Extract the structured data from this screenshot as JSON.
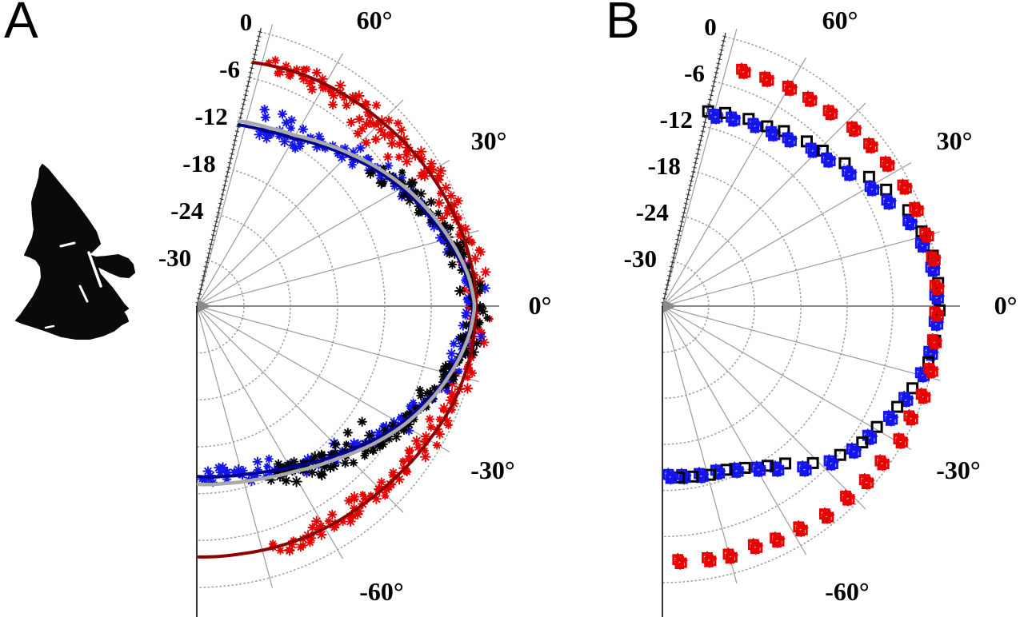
{
  "figure": {
    "panel_a_label": "A",
    "panel_b_label": "B",
    "background": "#ffffff"
  },
  "colors": {
    "red_marker": "#e60000",
    "red_line": "#8f0000",
    "blue_marker": "#1414ee",
    "blue_line": "#000090",
    "gray_line": "#a9a9a9",
    "black_marker": "#000000",
    "grid": "#9c9c9c",
    "axis": "#333333",
    "center_marker": "#8a8a8a"
  },
  "bat_silhouette": {
    "fill": "#0a0a0a",
    "outline": [
      [
        53,
        206
      ],
      [
        60,
        212
      ],
      [
        73,
        228
      ],
      [
        93,
        252
      ],
      [
        110,
        275
      ],
      [
        120,
        290
      ],
      [
        125,
        305
      ],
      [
        117,
        313
      ],
      [
        110,
        319
      ],
      [
        120,
        322
      ],
      [
        133,
        321
      ],
      [
        148,
        319
      ],
      [
        160,
        324
      ],
      [
        166,
        331
      ],
      [
        168,
        341
      ],
      [
        161,
        347
      ],
      [
        150,
        346
      ],
      [
        138,
        341
      ],
      [
        128,
        336
      ],
      [
        121,
        333
      ],
      [
        125,
        343
      ],
      [
        133,
        352
      ],
      [
        140,
        360
      ],
      [
        148,
        371
      ],
      [
        155,
        381
      ],
      [
        160,
        386
      ],
      [
        154,
        390
      ],
      [
        158,
        396
      ],
      [
        160,
        402
      ],
      [
        152,
        406
      ],
      [
        142,
        414
      ],
      [
        128,
        420
      ],
      [
        112,
        424
      ],
      [
        95,
        424
      ],
      [
        77,
        421
      ],
      [
        58,
        414
      ],
      [
        40,
        408
      ],
      [
        27,
        404
      ],
      [
        20,
        401
      ],
      [
        26,
        394
      ],
      [
        33,
        384
      ],
      [
        42,
        371
      ],
      [
        49,
        357
      ],
      [
        52,
        347
      ],
      [
        51,
        334
      ],
      [
        45,
        325
      ],
      [
        37,
        321
      ],
      [
        31,
        319
      ],
      [
        36,
        308
      ],
      [
        41,
        297
      ],
      [
        43,
        287
      ],
      [
        41,
        270
      ],
      [
        40,
        253
      ],
      [
        43,
        241
      ],
      [
        46,
        233
      ],
      [
        49,
        222
      ],
      [
        50,
        211
      ]
    ],
    "white_details": [
      {
        "from": [
          76,
          308
        ],
        "to": [
          93,
          304
        ],
        "w": 3
      },
      {
        "from": [
          111,
          316
        ],
        "to": [
          126,
          358
        ],
        "w": 3.5
      },
      {
        "from": [
          100,
          358
        ],
        "to": [
          109,
          377
        ],
        "w": 3
      },
      {
        "from": [
          57,
          410
        ],
        "to": [
          67,
          408
        ],
        "w": 2.5
      }
    ]
  },
  "chart_data": [
    {
      "id": "A",
      "type": "polar-scatter",
      "angle_unit": "degrees",
      "radial_unit": "dB",
      "angle_span": [
        77,
        -90
      ],
      "spoke_step_deg": 15,
      "radial_ticks": [
        "0",
        "-6",
        "-12",
        "-18",
        "-24",
        "-30"
      ],
      "radial_tick_values": [
        0,
        -6,
        -12,
        -18,
        -24,
        -30
      ],
      "radial_center_value": -36,
      "angle_ticks": [
        "60°",
        "30°",
        "0°",
        "-30°",
        "-60°"
      ],
      "angle_tick_values": [
        60,
        30,
        0,
        -30,
        -60
      ],
      "series": [
        {
          "name": "red-fit-line",
          "kind": "line",
          "colorKey": "red_line",
          "width": 4,
          "profile": [
            [
              77,
              -4.0
            ],
            [
              65,
              -3.4
            ],
            [
              55,
              -3.0
            ],
            [
              45,
              -2.6
            ],
            [
              35,
              -2.0
            ],
            [
              25,
              -1.4
            ],
            [
              15,
              -0.8
            ],
            [
              5,
              -0.35
            ],
            [
              0,
              -0.3
            ],
            [
              -10,
              -0.45
            ],
            [
              -20,
              -0.9
            ],
            [
              -30,
              -1.7
            ],
            [
              -40,
              -2.4
            ],
            [
              -50,
              -2.9
            ],
            [
              -60,
              -3.2
            ],
            [
              -70,
              -3.5
            ],
            [
              -80,
              -3.8
            ],
            [
              -90,
              -3.9
            ]
          ]
        },
        {
          "name": "blue-fit-line",
          "kind": "line",
          "colorKey": "blue_line",
          "width": 4,
          "profile": [
            [
              77,
              -12.2
            ],
            [
              68,
              -11.9
            ],
            [
              60,
              -11.2
            ],
            [
              52,
              -10.0
            ],
            [
              44,
              -8.6
            ],
            [
              36,
              -7.0
            ],
            [
              28,
              -5.4
            ],
            [
              20,
              -3.9
            ],
            [
              12,
              -2.3
            ],
            [
              6,
              -1.2
            ],
            [
              0,
              -0.6
            ],
            [
              -6,
              -1.1
            ],
            [
              -12,
              -2.1
            ],
            [
              -18,
              -3.2
            ],
            [
              -24,
              -4.5
            ],
            [
              -30,
              -5.9
            ],
            [
              -36,
              -7.3
            ],
            [
              -42,
              -8.8
            ],
            [
              -48,
              -10.1
            ],
            [
              -54,
              -11.2
            ],
            [
              -60,
              -12.2
            ],
            [
              -66,
              -12.9
            ],
            [
              -72,
              -13.5
            ],
            [
              -80,
              -13.9
            ],
            [
              -90,
              -14.2
            ]
          ]
        },
        {
          "name": "gray-fit-line",
          "kind": "line",
          "colorKey": "gray_line",
          "width": 4.5,
          "profile": [
            [
              77,
              -11.7
            ],
            [
              68,
              -11.4
            ],
            [
              60,
              -10.8
            ],
            [
              52,
              -9.6
            ],
            [
              44,
              -8.2
            ],
            [
              36,
              -6.6
            ],
            [
              28,
              -5.0
            ],
            [
              20,
              -3.5
            ],
            [
              12,
              -2.0
            ],
            [
              6,
              -1.0
            ],
            [
              0,
              -0.45
            ],
            [
              -6,
              -0.95
            ],
            [
              -12,
              -1.9
            ],
            [
              -18,
              -3.0
            ],
            [
              -24,
              -4.2
            ],
            [
              -30,
              -5.5
            ],
            [
              -36,
              -6.9
            ],
            [
              -42,
              -8.3
            ],
            [
              -48,
              -9.6
            ],
            [
              -54,
              -10.6
            ],
            [
              -60,
              -11.5
            ],
            [
              -66,
              -12.1
            ],
            [
              -72,
              -12.6
            ],
            [
              -80,
              -13.0
            ],
            [
              -90,
              -13.2
            ]
          ]
        },
        {
          "name": "red-asterisks",
          "kind": "scatter",
          "marker": "asterisk",
          "colorKey": "red_marker",
          "count": 210,
          "angle_range": [
            73,
            -72
          ],
          "sigma_db": 0.75,
          "profileRef": "red-fit-line",
          "outliers": [
            [
              62,
              -4.6
            ],
            [
              56,
              -4.9
            ],
            [
              50,
              -5.3
            ],
            [
              49,
              -4.3
            ],
            [
              47,
              -4.2
            ],
            [
              47,
              -5.0
            ],
            [
              47,
              -5.8
            ],
            [
              44,
              -5.9
            ],
            [
              43,
              -4.7
            ],
            [
              38,
              -5.0
            ],
            [
              30,
              -4.2
            ],
            [
              -52,
              -4.4
            ],
            [
              -57,
              -4.2
            ]
          ]
        },
        {
          "name": "blue-asterisks",
          "kind": "scatter",
          "marker": "asterisk",
          "colorKey": "blue_marker",
          "count": 185,
          "angle_range": [
            71,
            -88
          ],
          "sigma_db": 0.7,
          "profileRef": "blue-fit-line",
          "outliers": [
            [
              71,
              -9.4
            ],
            [
              70,
              -10.3
            ],
            [
              66,
              -9.1
            ],
            [
              64,
              -9.9
            ],
            [
              63,
              -9.3
            ],
            [
              59,
              -9.6
            ],
            [
              44,
              -6.9
            ],
            [
              -38,
              -7.3
            ]
          ]
        },
        {
          "name": "black-asterisks",
          "kind": "scatter",
          "marker": "asterisk",
          "colorKey": "black_marker",
          "count": 165,
          "angle_range": [
            37,
            -66
          ],
          "sigma_db": 0.75,
          "profileRef": "gray-fit-line",
          "outliers": [
            [
              -40,
              -10.8
            ],
            [
              -45,
              -10.9
            ],
            [
              -50,
              -11.2
            ],
            [
              -55,
              -11.3
            ],
            [
              -35,
              -10.2
            ]
          ]
        }
      ]
    },
    {
      "id": "B",
      "type": "polar-scatter",
      "angle_unit": "degrees",
      "radial_unit": "dB",
      "angle_span": [
        77,
        -90
      ],
      "spoke_step_deg": 15,
      "radial_ticks": [
        "0",
        "-6",
        "-12",
        "-18",
        "-24",
        "-30"
      ],
      "radial_tick_values": [
        0,
        -6,
        -12,
        -18,
        -24,
        -30
      ],
      "radial_center_value": -36,
      "angle_ticks": [
        "60°",
        "30°",
        "0°",
        "-30°",
        "-60°"
      ],
      "angle_tick_values": [
        60,
        30,
        0,
        -30,
        -60
      ],
      "series": [
        {
          "name": "blue-square-clusters",
          "kind": "clusters",
          "colorKey": "blue_marker",
          "black_backing": true,
          "angles": {
            "start": 74.6,
            "step": -5.6,
            "count": 30
          },
          "profile": [
            [
              75,
              -10.2
            ],
            [
              68,
              -9.8
            ],
            [
              61,
              -9.4
            ],
            [
              54,
              -8.8
            ],
            [
              48,
              -8.1
            ],
            [
              41,
              -7.0
            ],
            [
              35,
              -6.0
            ],
            [
              29,
              -4.6
            ],
            [
              24,
              -3.4
            ],
            [
              19,
              -2.2
            ],
            [
              14,
              -1.3
            ],
            [
              9,
              -0.7
            ],
            [
              4,
              -0.25
            ],
            [
              0,
              -0.1
            ],
            [
              -5,
              -0.35
            ],
            [
              -10,
              -0.7
            ],
            [
              -15,
              -1.2
            ],
            [
              -20,
              -1.9
            ],
            [
              -25,
              -2.7
            ],
            [
              -30,
              -3.5
            ],
            [
              -36,
              -4.6
            ],
            [
              -42,
              -6.0
            ],
            [
              -47,
              -7.4
            ],
            [
              -52,
              -9.0
            ],
            [
              -57,
              -10.8
            ],
            [
              -62,
              -12.2
            ],
            [
              -67,
              -13.0
            ],
            [
              -72,
              -13.4
            ],
            [
              -78,
              -13.6
            ],
            [
              -84,
              -13.7
            ],
            [
              -90,
              -13.8
            ]
          ]
        },
        {
          "name": "red-square-clusters",
          "kind": "clusters",
          "colorKey": "red_marker",
          "black_backing": false,
          "angles": {
            "start": 71.2,
            "step": -5.6,
            "count": 29
          },
          "profile": [
            [
              73,
              -3.6
            ],
            [
              65,
              -3.3
            ],
            [
              57,
              -3.0
            ],
            [
              50,
              -2.6
            ],
            [
              43,
              -2.1
            ],
            [
              36,
              -1.5
            ],
            [
              29,
              -1.0
            ],
            [
              22,
              -0.6
            ],
            [
              15,
              -0.35
            ],
            [
              8,
              -0.15
            ],
            [
              0,
              -0.05
            ],
            [
              -8,
              -0.1
            ],
            [
              -16,
              -0.2
            ],
            [
              -24,
              -0.35
            ],
            [
              -32,
              -0.55
            ],
            [
              -40,
              -0.9
            ],
            [
              -48,
              -1.3
            ],
            [
              -56,
              -1.7
            ],
            [
              -64,
              -2.1
            ],
            [
              -72,
              -2.4
            ],
            [
              -80,
              -2.6
            ],
            [
              -88,
              -2.8
            ]
          ]
        }
      ]
    }
  ]
}
